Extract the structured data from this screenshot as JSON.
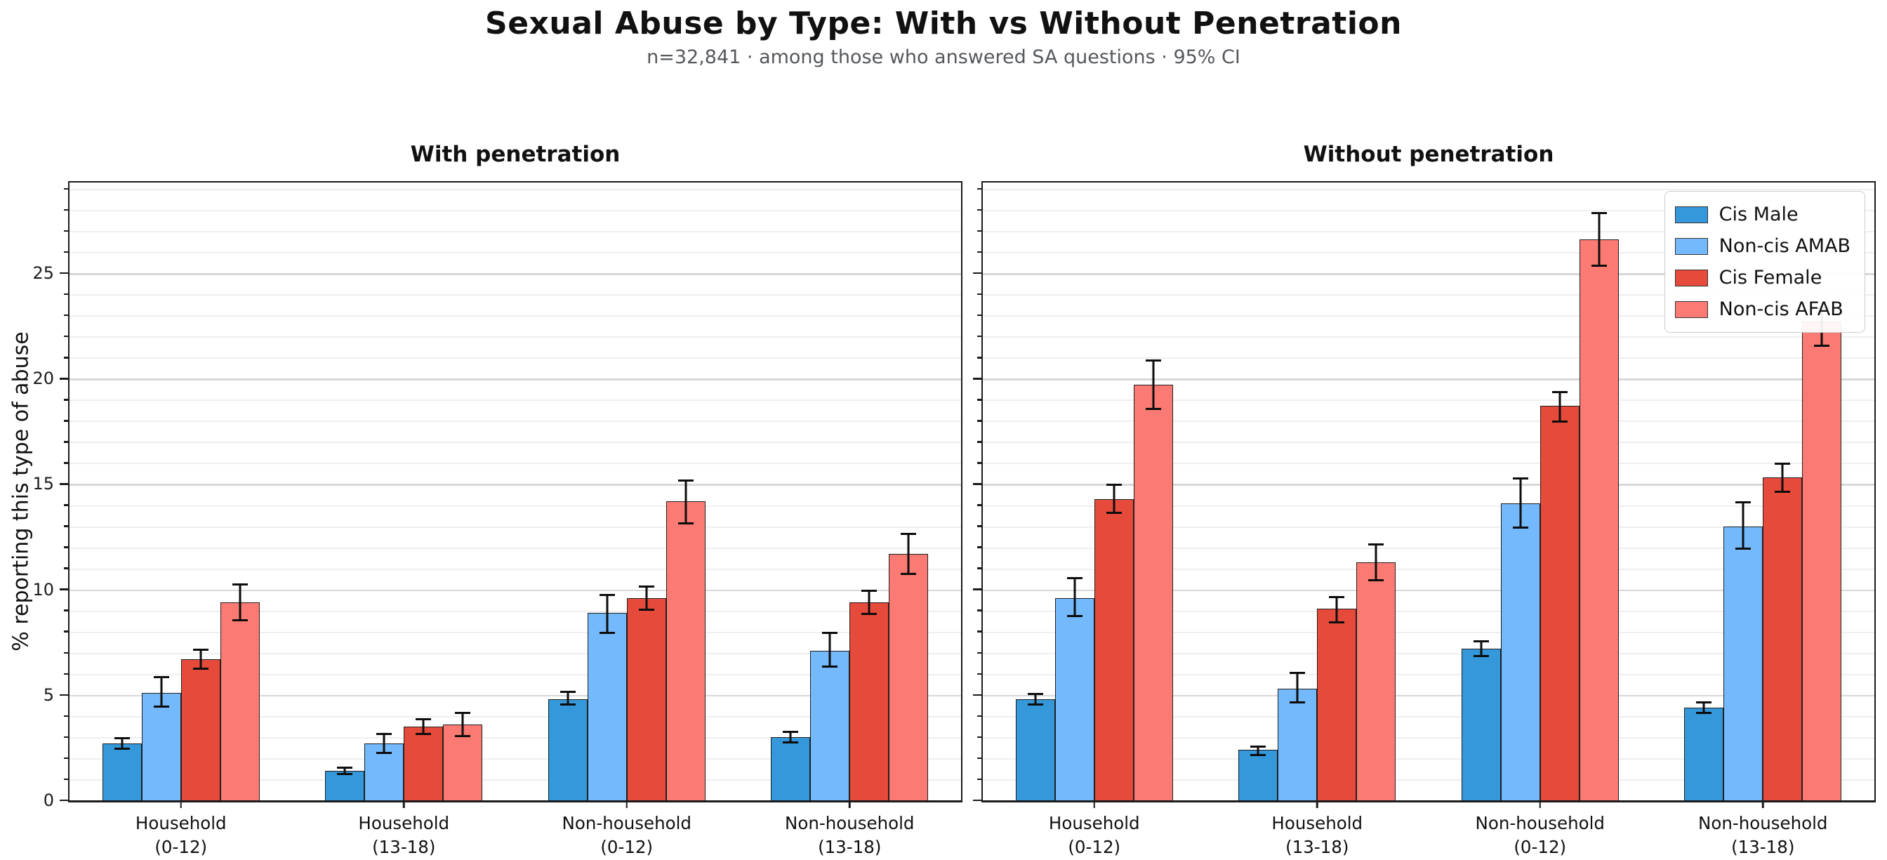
{
  "header": {
    "title": "Sexual Abuse by Type: With vs Without Penetration",
    "subtitle": "n=32,841 · among those who answered SA questions · 95% CI"
  },
  "chart_data": {
    "type": "bar",
    "variant": "grouped bars with 95% CI error bars, two panels sharing y-axis",
    "title": "Sexual Abuse by Type: With vs Without Penetration",
    "subtitle": "n=32,841 · among those who answered SA questions · 95% CI",
    "xlabel": "",
    "ylabel": "% reporting this type of abuse",
    "ylim": [
      0,
      29.3
    ],
    "yticks": [
      0,
      5,
      10,
      15,
      20,
      25
    ],
    "minor_grid_step": 1,
    "grid": "horizontal only; light minor lines every 1, darker major lines every 5",
    "legend_position": "upper right of second panel",
    "bar_width_pct": 4.4,
    "categories": [
      {
        "line1": "Household",
        "line2": "(0-12)"
      },
      {
        "line1": "Household",
        "line2": "(13-18)"
      },
      {
        "line1": "Non-household",
        "line2": "(0-12)"
      },
      {
        "line1": "Non-household",
        "line2": "(13-18)"
      }
    ],
    "series_names": [
      "Cis Male",
      "Non-cis AMAB",
      "Cis Female",
      "Non-cis AFAB"
    ],
    "series_colors": [
      "#3498db",
      "#74b9fc",
      "#e64a3b",
      "#fb7a73"
    ],
    "panels": [
      {
        "title": "With penetration",
        "show_y_tick_labels": true,
        "show_legend": false,
        "series": [
          {
            "name": "Cis Male",
            "values": [
              2.7,
              1.4,
              4.8,
              3.0
            ],
            "ci_low": [
              2.4,
              1.2,
              4.5,
              2.7
            ],
            "ci_high": [
              3.0,
              1.6,
              5.2,
              3.3
            ]
          },
          {
            "name": "Non-cis AMAB",
            "values": [
              5.1,
              2.7,
              8.9,
              7.1
            ],
            "ci_low": [
              4.4,
              2.2,
              7.9,
              6.3
            ],
            "ci_high": [
              5.9,
              3.2,
              9.8,
              8.0
            ]
          },
          {
            "name": "Cis Female",
            "values": [
              6.7,
              3.5,
              9.6,
              9.4
            ],
            "ci_low": [
              6.2,
              3.1,
              9.0,
              8.8
            ],
            "ci_high": [
              7.2,
              3.9,
              10.2,
              10.0
            ]
          },
          {
            "name": "Non-cis AFAB",
            "values": [
              9.4,
              3.6,
              14.2,
              11.7
            ],
            "ci_low": [
              8.5,
              3.0,
              13.1,
              10.7
            ],
            "ci_high": [
              10.3,
              4.2,
              15.2,
              12.7
            ]
          }
        ]
      },
      {
        "title": "Without penetration",
        "show_y_tick_labels": false,
        "show_legend": true,
        "series": [
          {
            "name": "Cis Male",
            "values": [
              4.8,
              2.4,
              7.2,
              4.4
            ],
            "ci_low": [
              4.5,
              2.1,
              6.8,
              4.1
            ],
            "ci_high": [
              5.1,
              2.6,
              7.6,
              4.7
            ]
          },
          {
            "name": "Non-cis AMAB",
            "values": [
              9.6,
              5.3,
              14.1,
              13.0
            ],
            "ci_low": [
              8.7,
              4.6,
              12.9,
              11.9
            ],
            "ci_high": [
              10.6,
              6.1,
              15.3,
              14.2
            ]
          },
          {
            "name": "Cis Female",
            "values": [
              14.3,
              9.1,
              18.7,
              15.3
            ],
            "ci_low": [
              13.6,
              8.4,
              17.9,
              14.6
            ],
            "ci_high": [
              15.0,
              9.7,
              19.4,
              16.0
            ]
          },
          {
            "name": "Non-cis AFAB",
            "values": [
              19.7,
              11.3,
              26.6,
              22.7
            ],
            "ci_low": [
              18.5,
              10.4,
              25.3,
              21.5
            ],
            "ci_high": [
              20.9,
              12.2,
              27.9,
              23.4
            ]
          }
        ]
      }
    ]
  }
}
